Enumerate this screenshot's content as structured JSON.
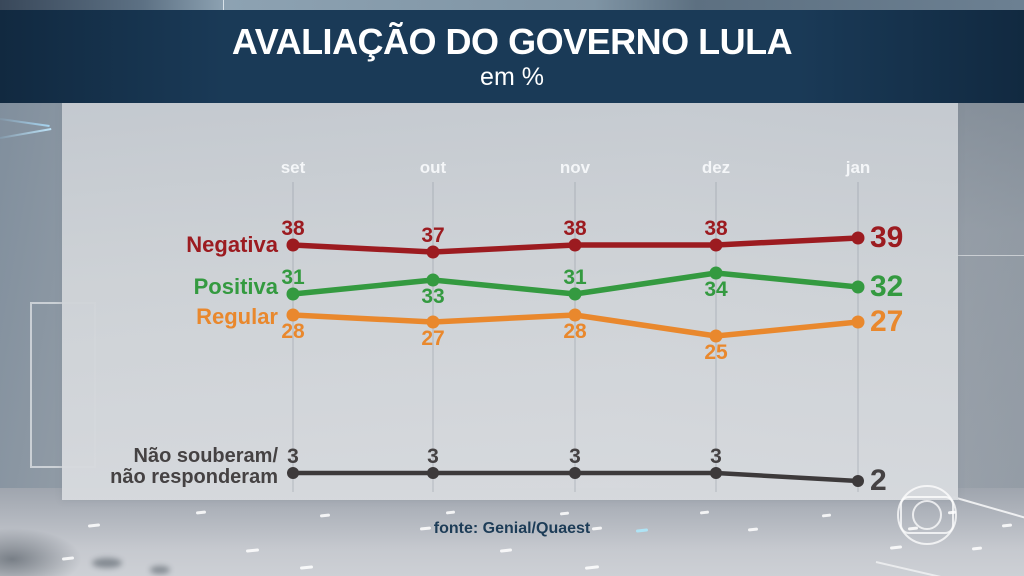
{
  "header": {
    "title": "AVALIAÇÃO DO GOVERNO LULA",
    "subtitle": "em %"
  },
  "footer": {
    "source": "fonte: Genial/Quaest"
  },
  "colors": {
    "banner_navy": "#1a3a57",
    "negative_red": "#9c1b20",
    "positive_green": "#349a40",
    "regular_orange": "#e9882d",
    "neutral_dark_gray": "#3d3a3b",
    "source_text_navy": "#1d3c57",
    "axis_label_white": "#f4f6f8"
  },
  "chart_data": {
    "type": "line",
    "title": "AVALIAÇÃO DO GOVERNO LULA",
    "unit": "%",
    "categories": [
      "set",
      "out",
      "nov",
      "dez",
      "jan"
    ],
    "series": [
      {
        "name": "Negativa",
        "color": "#9c1b20",
        "values": [
          38,
          37,
          38,
          38,
          39
        ],
        "label_sides": [
          "above",
          "above",
          "above",
          "above",
          "end"
        ]
      },
      {
        "name": "Positiva",
        "color": "#349a40",
        "values": [
          31,
          33,
          31,
          34,
          32
        ],
        "label_sides": [
          "above",
          "below",
          "above",
          "below",
          "end"
        ]
      },
      {
        "name": "Regular",
        "color": "#e9882d",
        "values": [
          28,
          27,
          28,
          25,
          27
        ],
        "label_sides": [
          "below",
          "below",
          "below",
          "below",
          "end"
        ]
      },
      {
        "name": "Não souberam/\nnão responderam",
        "color": "#3d3a3b",
        "text_color": "#454243",
        "values": [
          3,
          3,
          3,
          3,
          2
        ],
        "label_sides": [
          "above",
          "above",
          "above",
          "above",
          "end"
        ]
      }
    ],
    "legend_position": "left",
    "grid": "vertical",
    "last_value_emphasized": true,
    "source": "fonte: Genial/Quaest"
  }
}
